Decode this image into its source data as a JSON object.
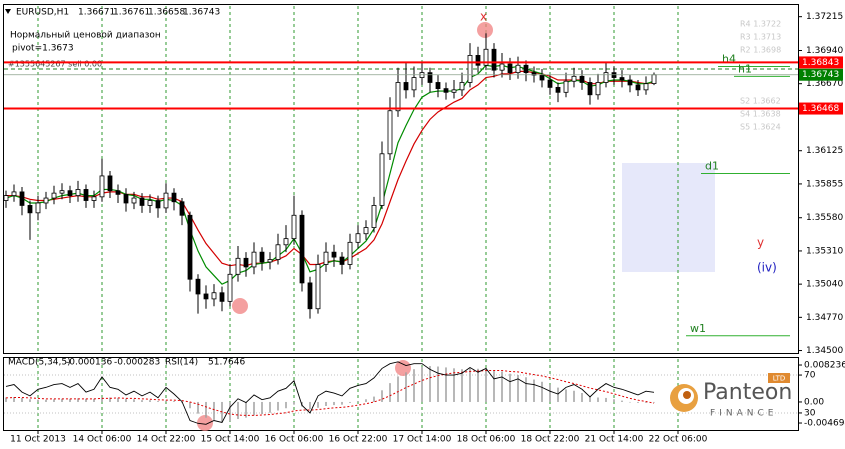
{
  "chart_data": {
    "type": "candlestick",
    "symbol": "EURUSD,H1",
    "candles": {
      "open": [
        1.3572,
        1.3576,
        1.3579,
        1.3568,
        1.3562,
        1.357,
        1.3574,
        1.3578,
        1.358,
        1.3576,
        1.3581,
        1.3572,
        1.3575,
        1.3592,
        1.358,
        1.3577,
        1.357,
        1.3574,
        1.3568,
        1.3572,
        1.3566,
        1.3578,
        1.3571,
        1.356,
        1.3508,
        1.3496,
        1.3492,
        1.3497,
        1.349,
        1.3512,
        1.3525,
        1.3518,
        1.353,
        1.3522,
        1.3524,
        1.3536,
        1.3541,
        1.356,
        1.3505,
        1.3484,
        1.352,
        1.353,
        1.3526,
        1.352,
        1.3538,
        1.3545,
        1.355,
        1.3568,
        1.361,
        1.3645,
        1.3668,
        1.3662,
        1.3672,
        1.3676,
        1.3668,
        1.3663,
        1.366,
        1.3662,
        1.3668,
        1.369,
        1.3682,
        1.3695,
        1.3678,
        1.3683,
        1.3676,
        1.3682,
        1.3676,
        1.3674,
        1.367,
        1.3664,
        1.366,
        1.3669,
        1.3673,
        1.3668,
        1.3658,
        1.3668,
        1.3676,
        1.3672,
        1.367,
        1.3666,
        1.3662,
        1.36671
      ],
      "high": [
        1.358,
        1.3585,
        1.3583,
        1.3572,
        1.3576,
        1.3579,
        1.3584,
        1.3586,
        1.3584,
        1.3588,
        1.3585,
        1.358,
        1.3606,
        1.3596,
        1.3585,
        1.3582,
        1.3579,
        1.3578,
        1.3577,
        1.3576,
        1.3586,
        1.3582,
        1.3574,
        1.3563,
        1.3512,
        1.3503,
        1.3504,
        1.3502,
        1.352,
        1.3535,
        1.353,
        1.3538,
        1.3534,
        1.353,
        1.3545,
        1.3552,
        1.3576,
        1.3564,
        1.351,
        1.3528,
        1.3538,
        1.3536,
        1.353,
        1.3545,
        1.3552,
        1.3556,
        1.3575,
        1.362,
        1.3656,
        1.368,
        1.3684,
        1.3681,
        1.3684,
        1.368,
        1.3674,
        1.3668,
        1.367,
        1.3676,
        1.37,
        1.3697,
        1.3708,
        1.37,
        1.3692,
        1.3688,
        1.3689,
        1.3686,
        1.3681,
        1.3679,
        1.3674,
        1.3668,
        1.3676,
        1.368,
        1.3678,
        1.3672,
        1.3675,
        1.3684,
        1.3681,
        1.3678,
        1.3674,
        1.367,
        1.3673,
        1.36761
      ],
      "low": [
        1.3566,
        1.3571,
        1.356,
        1.354,
        1.3556,
        1.3565,
        1.3569,
        1.3573,
        1.357,
        1.3571,
        1.3566,
        1.3566,
        1.3571,
        1.3574,
        1.357,
        1.3563,
        1.3565,
        1.3562,
        1.3562,
        1.3558,
        1.3562,
        1.3564,
        1.3552,
        1.3498,
        1.348,
        1.3484,
        1.3486,
        1.3482,
        1.3486,
        1.3506,
        1.351,
        1.3512,
        1.3515,
        1.3516,
        1.352,
        1.353,
        1.3536,
        1.3498,
        1.3476,
        1.348,
        1.3514,
        1.3518,
        1.3512,
        1.3516,
        1.3533,
        1.354,
        1.3546,
        1.3565,
        1.3605,
        1.364,
        1.3655,
        1.3656,
        1.3666,
        1.366,
        1.3656,
        1.3654,
        1.3655,
        1.3657,
        1.3664,
        1.3676,
        1.3678,
        1.3672,
        1.3672,
        1.367,
        1.3671,
        1.3669,
        1.3668,
        1.3664,
        1.3658,
        1.3652,
        1.3656,
        1.3664,
        1.3662,
        1.365,
        1.3654,
        1.3664,
        1.3666,
        1.3664,
        1.366,
        1.3657,
        1.3658,
        1.36658
      ],
      "close": [
        1.3576,
        1.3579,
        1.3568,
        1.3562,
        1.357,
        1.3574,
        1.3578,
        1.358,
        1.3576,
        1.3581,
        1.3572,
        1.3575,
        1.3592,
        1.358,
        1.3577,
        1.357,
        1.3574,
        1.3568,
        1.3572,
        1.3566,
        1.3578,
        1.3571,
        1.356,
        1.3508,
        1.3496,
        1.3492,
        1.3497,
        1.349,
        1.3512,
        1.3525,
        1.3518,
        1.353,
        1.3522,
        1.3524,
        1.3536,
        1.3541,
        1.356,
        1.3505,
        1.3484,
        1.352,
        1.353,
        1.3526,
        1.352,
        1.3538,
        1.3545,
        1.355,
        1.3568,
        1.361,
        1.3645,
        1.3668,
        1.3662,
        1.3672,
        1.3676,
        1.3668,
        1.3663,
        1.366,
        1.3662,
        1.3668,
        1.369,
        1.3682,
        1.3695,
        1.3678,
        1.3683,
        1.3676,
        1.3682,
        1.3676,
        1.3674,
        1.367,
        1.3664,
        1.366,
        1.3669,
        1.3673,
        1.3668,
        1.3658,
        1.3668,
        1.3676,
        1.3672,
        1.367,
        1.3666,
        1.3662,
        1.3667,
        1.36743
      ]
    },
    "ma_lines": [
      {
        "color": "#d40000",
        "values": [
          1.3576,
          1.3576,
          1.3575,
          1.3573,
          1.3572,
          1.3572,
          1.3573,
          1.3574,
          1.3575,
          1.3576,
          1.3575,
          1.3575,
          1.3578,
          1.3579,
          1.3579,
          1.3577,
          1.3577,
          1.3575,
          1.3575,
          1.3573,
          1.3574,
          1.3574,
          1.3571,
          1.356,
          1.3548,
          1.3537,
          1.3529,
          1.3521,
          1.3519,
          1.352,
          1.3519,
          1.3521,
          1.3521,
          1.3522,
          1.3524,
          1.3527,
          1.3533,
          1.3528,
          1.352,
          1.352,
          1.3522,
          1.3523,
          1.3522,
          1.3525,
          1.3529,
          1.3533,
          1.354,
          1.3553,
          1.3571,
          1.3589,
          1.3604,
          1.3618,
          1.3629,
          1.3638,
          1.3644,
          1.3648,
          1.3652,
          1.3655,
          1.3662,
          1.3666,
          1.3672,
          1.3673,
          1.3675,
          1.3675,
          1.3677,
          1.3677,
          1.3676,
          1.3675,
          1.3673,
          1.367,
          1.367,
          1.367,
          1.367,
          1.3667,
          1.3667,
          1.3669,
          1.3669,
          1.3669,
          1.3669,
          1.3668,
          1.3667,
          1.3668
        ]
      },
      {
        "color": "#008c00",
        "values": [
          1.3574,
          1.3576,
          1.3574,
          1.357,
          1.357,
          1.3571,
          1.3574,
          1.3576,
          1.3577,
          1.3578,
          1.3576,
          1.3576,
          1.3581,
          1.3581,
          1.358,
          1.3577,
          1.3576,
          1.3573,
          1.3573,
          1.3571,
          1.3573,
          1.3572,
          1.3568,
          1.3548,
          1.3531,
          1.3518,
          1.3511,
          1.3504,
          1.3507,
          1.3513,
          1.3515,
          1.352,
          1.3521,
          1.3522,
          1.3527,
          1.3532,
          1.3541,
          1.3529,
          1.3514,
          1.3516,
          1.3521,
          1.3523,
          1.3522,
          1.3527,
          1.3533,
          1.3539,
          1.3549,
          1.3569,
          1.3594,
          1.3619,
          1.3633,
          1.3646,
          1.3656,
          1.366,
          1.3661,
          1.3661,
          1.3661,
          1.3663,
          1.3672,
          1.3675,
          1.3682,
          1.3681,
          1.3682,
          1.368,
          1.3681,
          1.3679,
          1.3677,
          1.3675,
          1.3671,
          1.3667,
          1.3668,
          1.367,
          1.3669,
          1.3665,
          1.3666,
          1.3669,
          1.367,
          1.367,
          1.3669,
          1.3667,
          1.3667,
          1.3669
        ]
      }
    ],
    "xlim": [
      -0.25,
      99
    ],
    "xticks": [
      {
        "value": 4,
        "label": "11 Oct 2013"
      },
      {
        "value": 12,
        "label": "14 Oct 06:00"
      },
      {
        "value": 20,
        "label": "14 Oct 22:00"
      },
      {
        "value": 28,
        "label": "15 Oct 14:00"
      },
      {
        "value": 36,
        "label": "16 Oct 06:00"
      },
      {
        "value": 44,
        "label": "16 Oct 22:00"
      },
      {
        "value": 52,
        "label": "17 Oct 14:00"
      },
      {
        "value": 60,
        "label": "18 Oct 06:00"
      },
      {
        "value": 68,
        "label": "18 Oct 22:00"
      },
      {
        "value": 76,
        "label": "21 Oct 14:00"
      },
      {
        "value": 84,
        "label": "22 Oct 06:00"
      }
    ],
    "ylim": [
      1.3448,
      1.3731
    ],
    "yticks": [
      1.37215,
      {
        "value": 1.3694,
        "label": "1.36940"
      },
      {
        "value": 1.3667,
        "label": "1.36670"
      },
      1.36125,
      1.35855,
      {
        "value": 1.3558,
        "label": "1.35580"
      },
      {
        "value": 1.3531,
        "label": "1.35310"
      },
      {
        "value": 1.3504,
        "label": "1.35040"
      },
      {
        "value": 1.3477,
        "label": "1.34770"
      },
      {
        "value": 1.345,
        "label": "1.34500"
      }
    ],
    "grid": true,
    "levels": [
      {
        "value": 1.36843,
        "color": "#ff0000"
      },
      {
        "value": 1.36468,
        "color": "#ff0000"
      }
    ],
    "bid_color": "#008000",
    "pivots": [
      {
        "label": "h4",
        "value": 1.3681
      },
      {
        "label": "h1",
        "value": 1.3673
      },
      {
        "label": "d1",
        "value": 1.3594
      },
      {
        "label": "w1",
        "value": 1.3462
      }
    ],
    "pivot_notes": [
      "R4 1.3722",
      "R3 1.3713",
      "R2 1.3698",
      "S2 1.3662",
      "S4 1.3638",
      "S5 1.3624"
    ],
    "notes": [
      "Нормальный ценовой диапазон",
      "pivot=1.3673"
    ],
    "order": {
      "label": "#1355645267 sell 0.00",
      "value": 1.3679
    },
    "annotations": [
      {
        "text": "x",
        "color": "#e03030"
      },
      {
        "text": "y",
        "color": "#e03030"
      },
      {
        "text": "(iv)",
        "color": "#2020c0"
      }
    ],
    "indicator": {
      "macd_label": "MACD(5,34,5)",
      "rsi_label": "RSI(14)",
      "macd": [
        0.001,
        0.0011,
        0.0009,
        0.0006,
        0.0005,
        0.0005,
        0.0006,
        0.0007,
        0.0007,
        0.0008,
        0.0007,
        0.0007,
        0.001,
        0.001,
        0.0009,
        0.0007,
        0.0006,
        0.0004,
        0.0004,
        0.0002,
        0.0003,
        0.0002,
        -0.0002,
        -0.0014,
        -0.0026,
        -0.0035,
        -0.004,
        -0.0045,
        -0.0043,
        -0.0038,
        -0.0035,
        -0.003,
        -0.0027,
        -0.0024,
        -0.0019,
        -0.0014,
        -0.0006,
        -0.001,
        -0.0016,
        -0.0013,
        -0.0009,
        -0.0007,
        -0.0006,
        -0.0002,
        0.0002,
        0.0006,
        0.0012,
        0.0026,
        0.0042,
        0.0057,
        0.0066,
        0.0073,
        0.0078,
        0.008,
        0.0079,
        0.0077,
        0.0075,
        0.0073,
        0.0075,
        0.0074,
        0.0075,
        0.0071,
        0.0068,
        0.0063,
        0.006,
        0.0055,
        0.005,
        0.0045,
        0.0039,
        0.0032,
        0.0028,
        0.0025,
        0.002,
        0.0013,
        0.001,
        0.0009,
        0.0006,
        0.0003,
        0.0,
        -0.0002,
        -0.0002,
        -0.000136
      ],
      "signal": [
        0.0009,
        0.001,
        0.001,
        0.0009,
        0.0008,
        0.0007,
        0.0007,
        0.0007,
        0.0007,
        0.0007,
        0.0007,
        0.0007,
        0.0008,
        0.0008,
        0.0009,
        0.0008,
        0.0008,
        0.0007,
        0.0006,
        0.0005,
        0.0004,
        0.0004,
        0.0003,
        0.0,
        -0.0005,
        -0.0011,
        -0.0017,
        -0.0022,
        -0.0027,
        -0.0029,
        -0.003,
        -0.003,
        -0.0029,
        -0.0028,
        -0.0026,
        -0.0024,
        -0.002,
        -0.0018,
        -0.0018,
        -0.0017,
        -0.0015,
        -0.0013,
        -0.0012,
        -0.001,
        -0.0007,
        -0.0004,
        0.0,
        0.0006,
        0.0014,
        0.0023,
        0.0032,
        0.004,
        0.0048,
        0.0054,
        0.0059,
        0.0062,
        0.0065,
        0.0066,
        0.0068,
        0.0069,
        0.007,
        0.007,
        0.007,
        0.0068,
        0.0067,
        0.0064,
        0.0061,
        0.0058,
        0.0054,
        0.005,
        0.0045,
        0.0041,
        0.0036,
        0.0031,
        0.0027,
        0.0023,
        0.0018,
        0.0013,
        0.0008,
        0.0004,
        0.0001,
        -0.000283
      ],
      "rsi": [
        58,
        60,
        52,
        48,
        55,
        57,
        60,
        61,
        57,
        61,
        52,
        55,
        68,
        57,
        55,
        49,
        53,
        48,
        52,
        46,
        57,
        50,
        42,
        22,
        19,
        18,
        22,
        20,
        36,
        45,
        41,
        49,
        44,
        46,
        53,
        56,
        64,
        38,
        30,
        48,
        53,
        51,
        48,
        56,
        59,
        61,
        67,
        77,
        82,
        84,
        80,
        82,
        82,
        76,
        72,
        70,
        70,
        72,
        78,
        73,
        77,
        66,
        68,
        63,
        66,
        61,
        60,
        57,
        53,
        50,
        57,
        60,
        55,
        47,
        55,
        61,
        57,
        55,
        52,
        49,
        53,
        51.7646
      ],
      "ylim": [
        -0.00625,
        0.0098
      ],
      "yticks": [
        0.008236,
        {
          "value": 0,
          "label": "0.00"
        },
        -0.004694
      ],
      "y2lim": [
        12,
        88
      ],
      "y2ticks": [
        70,
        30
      ]
    },
    "logo": {
      "name": "Panteon",
      "sub": "FINANCE",
      "badge": "LTD"
    }
  }
}
